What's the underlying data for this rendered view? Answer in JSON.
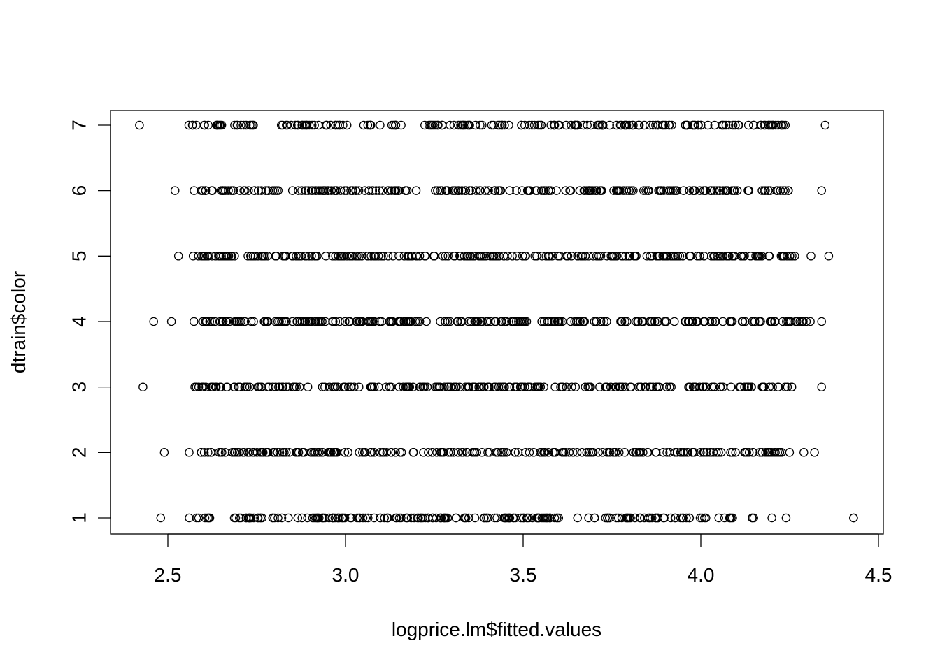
{
  "chart_data": {
    "type": "scatter",
    "title": "",
    "xlabel": "logprice.lm$fitted.values",
    "ylabel": "dtrain$color",
    "xlim": [
      2.42,
      4.43
    ],
    "ylim": [
      1,
      7
    ],
    "x_ticks": [
      "2.5",
      "3.0",
      "3.5",
      "4.0",
      "4.5"
    ],
    "y_ticks": [
      "1",
      "2",
      "3",
      "4",
      "5",
      "6",
      "7"
    ],
    "grid": false,
    "legend": "none",
    "marker": "open-circle",
    "rows": [
      {
        "y": 7,
        "outliers": [
          2.42,
          4.35
        ],
        "dense_ranges": [
          [
            2.55,
            2.58
          ],
          [
            2.59,
            2.66
          ],
          [
            2.68,
            2.75
          ],
          [
            2.8,
            3.01
          ],
          [
            3.05,
            3.1
          ],
          [
            3.13,
            3.17
          ],
          [
            3.21,
            3.27
          ],
          [
            3.27,
            3.39
          ],
          [
            3.4,
            3.46
          ],
          [
            3.49,
            3.55
          ],
          [
            3.55,
            3.67
          ],
          [
            3.67,
            3.75
          ],
          [
            3.75,
            3.86
          ],
          [
            3.86,
            3.9
          ],
          [
            3.9,
            3.93
          ],
          [
            3.94,
            4.11
          ],
          [
            4.13,
            4.27
          ]
        ]
      },
      {
        "y": 6,
        "outliers": [
          2.52,
          4.34
        ],
        "dense_ranges": [
          [
            2.57,
            2.66
          ],
          [
            2.66,
            2.72
          ],
          [
            2.72,
            3.0
          ],
          [
            3.0,
            3.06
          ],
          [
            3.06,
            3.2
          ],
          [
            3.25,
            3.9
          ],
          [
            3.9,
            4.26
          ]
        ]
      },
      {
        "y": 5,
        "outliers": [
          2.53,
          4.31,
          4.36
        ],
        "dense_ranges": [
          [
            2.56,
            2.65
          ],
          [
            2.65,
            2.75
          ],
          [
            2.75,
            3.5
          ],
          [
            3.5,
            4.1
          ],
          [
            4.1,
            4.27
          ]
        ]
      },
      {
        "y": 4,
        "outliers": [
          2.46,
          2.51,
          4.34
        ],
        "dense_ranges": [
          [
            2.57,
            2.7
          ],
          [
            2.7,
            2.85
          ],
          [
            2.85,
            3.95
          ],
          [
            3.95,
            4.28
          ],
          [
            4.28,
            4.31
          ]
        ]
      },
      {
        "y": 3,
        "outliers": [
          2.43,
          4.34
        ],
        "dense_ranges": [
          [
            2.55,
            2.63
          ],
          [
            2.63,
            2.72
          ],
          [
            2.72,
            3.95
          ],
          [
            3.95,
            4.15
          ],
          [
            4.17,
            4.26
          ]
        ]
      },
      {
        "y": 2,
        "outliers": [
          2.49,
          2.56,
          4.29,
          4.32
        ],
        "dense_ranges": [
          [
            2.59,
            2.62
          ],
          [
            2.62,
            2.72
          ],
          [
            2.72,
            4.05
          ],
          [
            4.05,
            4.25
          ]
        ]
      },
      {
        "y": 1,
        "outliers": [
          2.48,
          2.56,
          4.2,
          4.24,
          4.43,
          4.43
        ],
        "dense_ranges": [
          [
            2.58,
            2.63
          ],
          [
            2.66,
            2.75
          ],
          [
            2.75,
            3.4
          ],
          [
            3.4,
            3.85
          ],
          [
            3.85,
            4.02
          ],
          [
            4.05,
            4.09
          ],
          [
            4.13,
            4.15
          ]
        ]
      }
    ]
  }
}
